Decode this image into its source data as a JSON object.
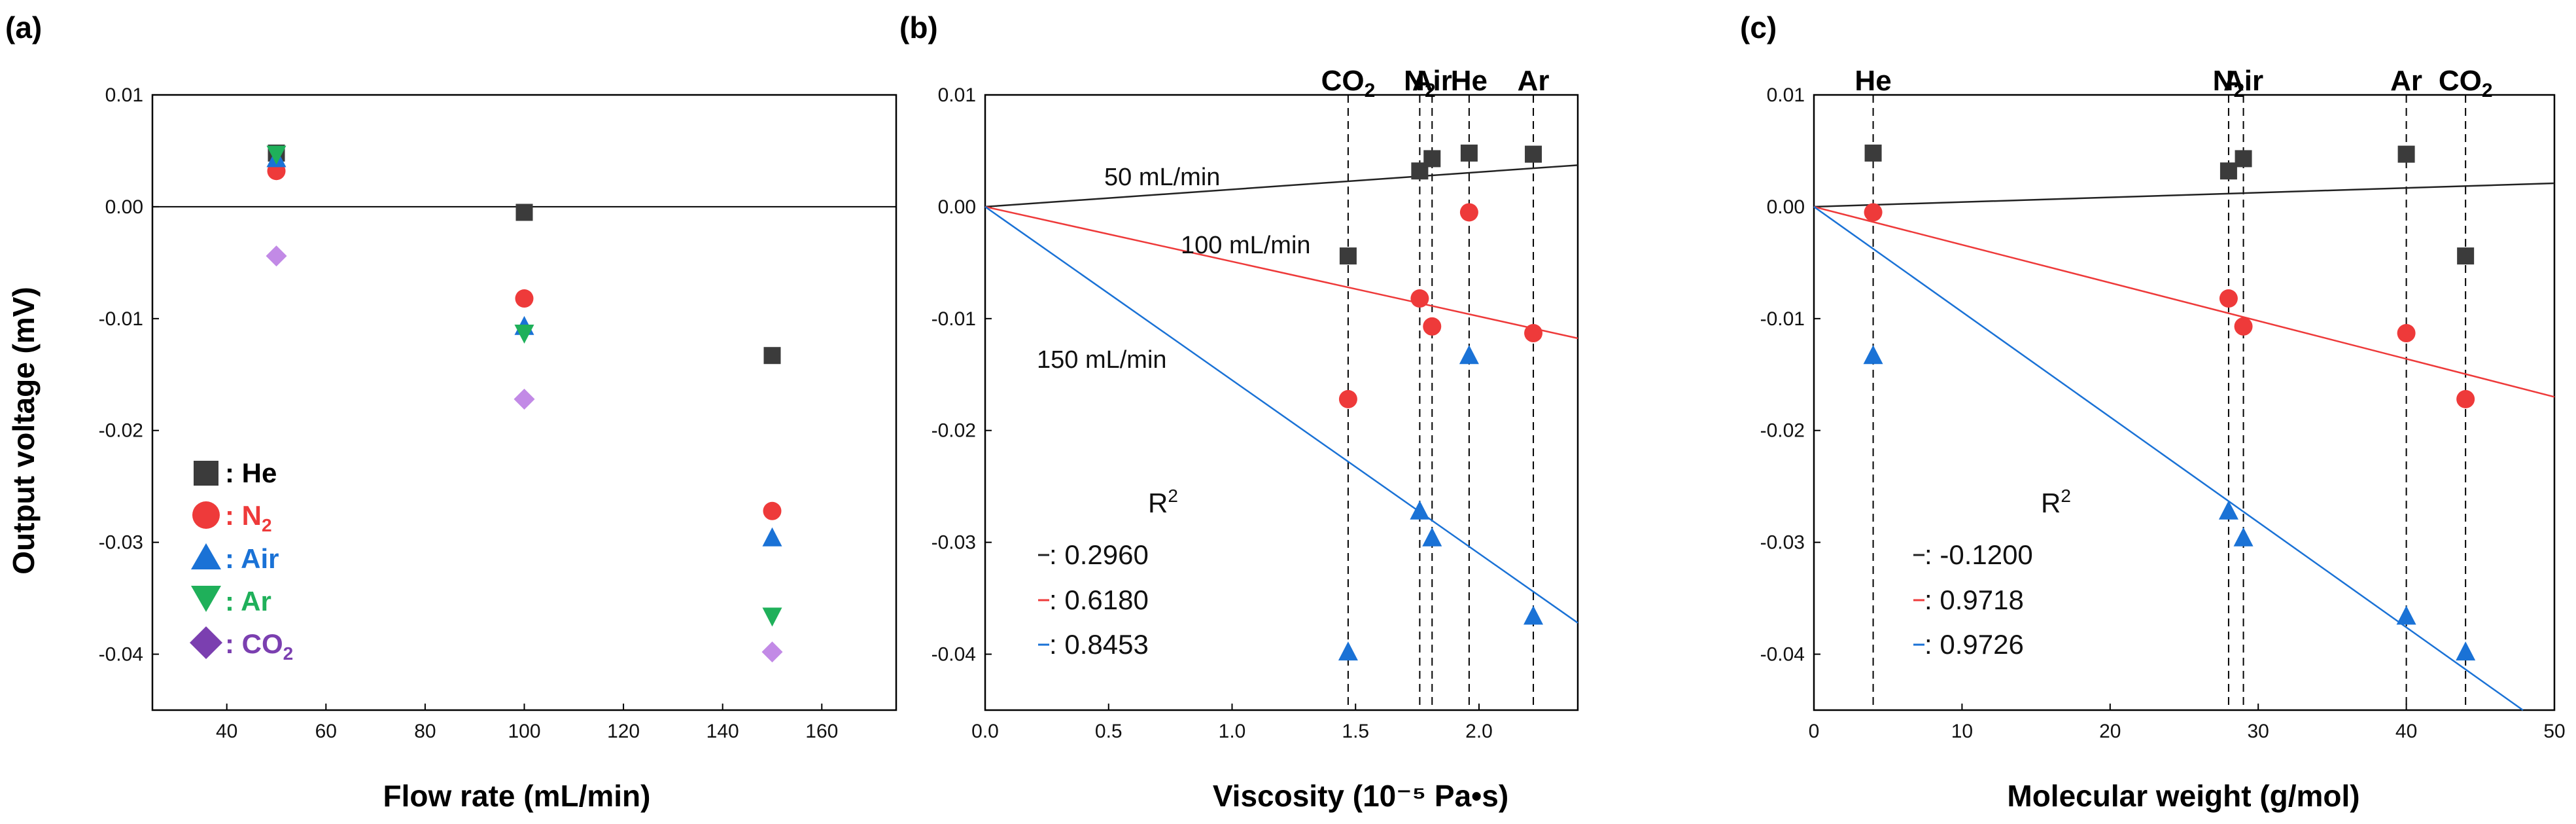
{
  "colors": {
    "He": "#3b3b3b",
    "N2": "#ee3a3a",
    "Air": "#1a72d6",
    "Ar": "#1fb05a",
    "CO2": "#c28ae6",
    "CO2_legend": "#7b3fb0",
    "fit_50": "#222222",
    "fit_100": "#ee3a3a",
    "fit_150": "#1a72d6"
  },
  "chart_data": [
    {
      "panel": "(a)",
      "type": "scatter",
      "xlabel": "Flow rate (mL/min)",
      "ylabel": "Output voltage (mV)",
      "xlim": [
        25,
        175
      ],
      "ylim": [
        -0.045,
        0.01
      ],
      "x_ticks": [
        40,
        60,
        80,
        100,
        120,
        140,
        160
      ],
      "y_ticks": [
        0.01,
        0.0,
        -0.01,
        -0.02,
        -0.03,
        -0.04
      ],
      "y_tick_labels": [
        "0.01",
        "0.00",
        "-0.01",
        "-0.02",
        "-0.03",
        "-0.04"
      ],
      "zero_line": true,
      "legend": {
        "position": "bottom-left",
        "entries": [
          {
            "gas": "He",
            "marker": "square",
            "prefix": ": ",
            "label": "He",
            "sub": ""
          },
          {
            "gas": "N2",
            "marker": "circle",
            "prefix": ": ",
            "label": "N",
            "sub": "2"
          },
          {
            "gas": "Air",
            "marker": "triangle-up",
            "prefix": ": ",
            "label": "Air",
            "sub": ""
          },
          {
            "gas": "Ar",
            "marker": "triangle-down",
            "prefix": ": ",
            "label": "Ar",
            "sub": ""
          },
          {
            "gas": "CO2",
            "marker": "diamond",
            "prefix": ": ",
            "label": "CO",
            "sub": "2"
          }
        ]
      },
      "series": [
        {
          "name": "He",
          "marker": "square",
          "x": [
            50,
            100,
            150
          ],
          "y": [
            0.0048,
            -0.0005,
            -0.0133
          ]
        },
        {
          "name": "N2",
          "marker": "circle",
          "x": [
            50,
            100,
            150
          ],
          "y": [
            0.0032,
            -0.0082,
            -0.0272
          ]
        },
        {
          "name": "Air",
          "marker": "triangle-up",
          "x": [
            50,
            100,
            150
          ],
          "y": [
            0.0043,
            -0.0107,
            -0.0296
          ]
        },
        {
          "name": "Ar",
          "marker": "triangle-down",
          "x": [
            50,
            100,
            150
          ],
          "y": [
            0.0047,
            -0.0113,
            -0.0366
          ]
        },
        {
          "name": "CO2",
          "marker": "diamond",
          "x": [
            50,
            100,
            150
          ],
          "y": [
            -0.0044,
            -0.0172,
            -0.0398
          ]
        }
      ]
    },
    {
      "panel": "(b)",
      "type": "scatter",
      "xlabel": "Viscosity (10⁻⁵ Pa•s)",
      "xlim": [
        0,
        2.4
      ],
      "ylim": [
        -0.045,
        0.01
      ],
      "x_ticks": [
        0.0,
        0.5,
        1.0,
        1.5,
        2.0
      ],
      "x_tick_labels": [
        "0.0",
        "0.5",
        "1.0",
        "1.5",
        "2.0"
      ],
      "y_ticks": [
        0.01,
        0.0,
        -0.01,
        -0.02,
        -0.03,
        -0.04
      ],
      "y_tick_labels": [
        "0.01",
        "0.00",
        "-0.01",
        "-0.02",
        "-0.03",
        "-0.04"
      ],
      "gas_lines": [
        {
          "gas": "CO2",
          "x": 1.47,
          "label": "CO",
          "sub": "2"
        },
        {
          "gas": "N2",
          "x": 1.76,
          "label": "N",
          "sub": "2"
        },
        {
          "gas": "Air",
          "x": 1.81,
          "label": "Air",
          "sub": ""
        },
        {
          "gas": "He",
          "x": 1.96,
          "label": "He",
          "sub": ""
        },
        {
          "gas": "Ar",
          "x": 2.22,
          "label": "Ar",
          "sub": ""
        }
      ],
      "fits": [
        {
          "flow": "50 mL/min",
          "slope": 0.00155,
          "r2": "0.2960",
          "color_key": "fit_50"
        },
        {
          "flow": "100 mL/min",
          "slope": -0.0049,
          "r2": "0.6180",
          "color_key": "fit_100"
        },
        {
          "flow": "150 mL/min",
          "slope": -0.0155,
          "r2": "0.8453",
          "color_key": "fit_150"
        }
      ],
      "series": [
        {
          "name": "50 mL/min",
          "marker": "square",
          "color_key": "He",
          "x": [
            1.47,
            1.76,
            1.81,
            1.96,
            2.22
          ],
          "y": [
            -0.0044,
            0.0032,
            0.0043,
            0.0048,
            0.0047
          ]
        },
        {
          "name": "100 mL/min",
          "marker": "circle",
          "color_key": "N2",
          "x": [
            1.47,
            1.76,
            1.81,
            1.96,
            2.22
          ],
          "y": [
            -0.0172,
            -0.0082,
            -0.0107,
            -0.0005,
            -0.0113
          ]
        },
        {
          "name": "150 mL/min",
          "marker": "triangle-up",
          "color_key": "Air",
          "x": [
            1.47,
            1.76,
            1.81,
            1.96,
            2.22
          ],
          "y": [
            -0.0398,
            -0.0272,
            -0.0296,
            -0.0133,
            -0.0366
          ]
        }
      ],
      "r2_title": "R",
      "r2_sup": "2",
      "r2_prefix": ": "
    },
    {
      "panel": "(c)",
      "type": "scatter",
      "xlabel": "Molecular weight (g/mol)",
      "xlim": [
        0,
        50
      ],
      "ylim": [
        -0.045,
        0.01
      ],
      "x_ticks": [
        0,
        10,
        20,
        30,
        40,
        50
      ],
      "x_tick_labels": [
        "0",
        "10",
        "20",
        "30",
        "40",
        "50"
      ],
      "y_ticks": [
        0.01,
        0.0,
        -0.01,
        -0.02,
        -0.03,
        -0.04
      ],
      "y_tick_labels": [
        "0.01",
        "0.00",
        "-0.01",
        "-0.02",
        "-0.03",
        "-0.04"
      ],
      "gas_lines": [
        {
          "gas": "He",
          "x": 4.0,
          "label": "He",
          "sub": ""
        },
        {
          "gas": "N2",
          "x": 28.0,
          "label": "N",
          "sub": "2"
        },
        {
          "gas": "Air",
          "x": 29.0,
          "label": "Air",
          "sub": ""
        },
        {
          "gas": "Ar",
          "x": 40.0,
          "label": "Ar",
          "sub": ""
        },
        {
          "gas": "CO2",
          "x": 44.0,
          "label": "CO",
          "sub": "2"
        }
      ],
      "fits": [
        {
          "slope": 4.2e-05,
          "r2": "-0.1200",
          "color_key": "fit_50"
        },
        {
          "slope": -0.00034,
          "r2": "0.9718",
          "color_key": "fit_100"
        },
        {
          "slope": -0.00094,
          "r2": "0.9726",
          "color_key": "fit_150"
        }
      ],
      "series": [
        {
          "name": "50 mL/min",
          "marker": "square",
          "color_key": "He",
          "x": [
            4.0,
            28.0,
            29.0,
            40.0,
            44.0
          ],
          "y": [
            0.0048,
            0.0032,
            0.0043,
            0.0047,
            -0.0044
          ]
        },
        {
          "name": "100 mL/min",
          "marker": "circle",
          "color_key": "N2",
          "x": [
            4.0,
            28.0,
            29.0,
            40.0,
            44.0
          ],
          "y": [
            -0.0005,
            -0.0082,
            -0.0107,
            -0.0113,
            -0.0172
          ]
        },
        {
          "name": "150 mL/min",
          "marker": "triangle-up",
          "color_key": "Air",
          "x": [
            4.0,
            28.0,
            29.0,
            40.0,
            44.0
          ],
          "y": [
            -0.0133,
            -0.0272,
            -0.0296,
            -0.0366,
            -0.0398
          ]
        }
      ],
      "r2_title": "R",
      "r2_sup": "2",
      "r2_prefix": ": "
    }
  ]
}
